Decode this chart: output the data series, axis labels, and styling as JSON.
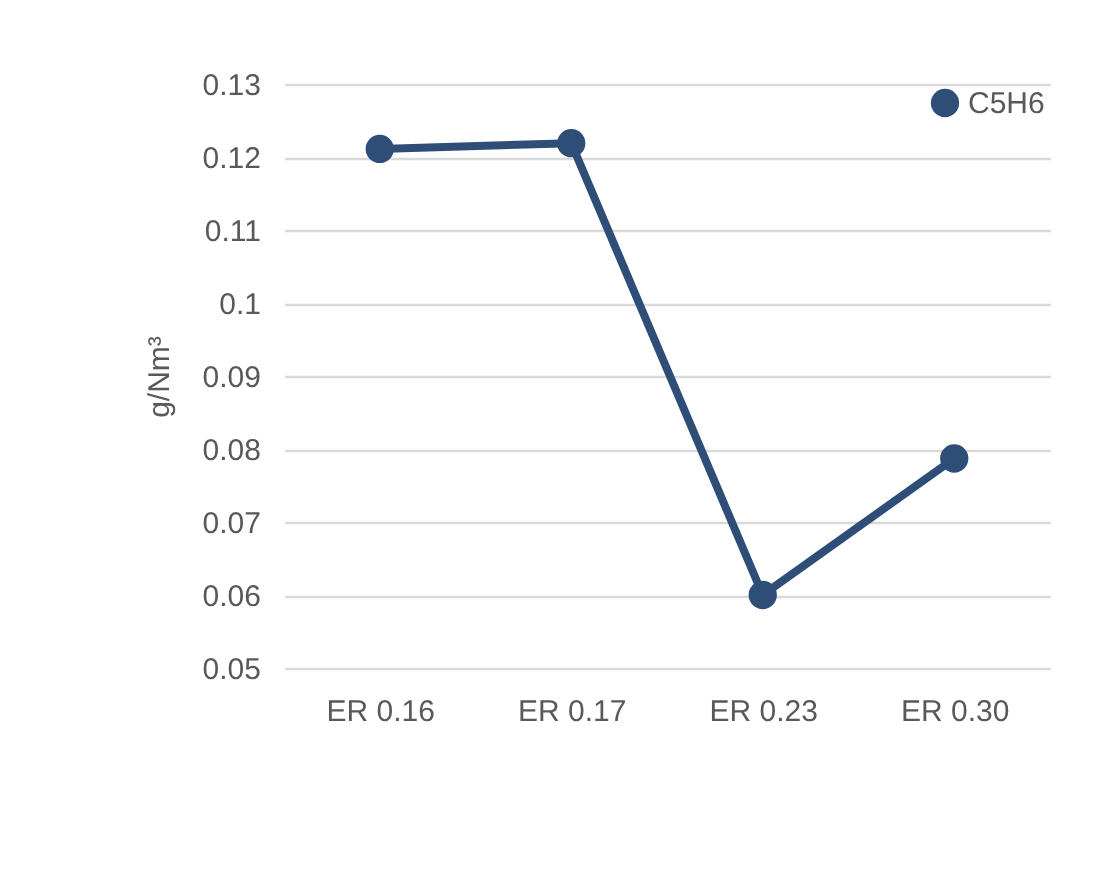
{
  "chart_data": {
    "type": "line",
    "ylabel": "g/Nm³",
    "categories": [
      "ER 0.16",
      "ER 0.17",
      "ER 0.23",
      "ER 0.30"
    ],
    "series": [
      {
        "name": "C5H6",
        "color": "#2e4e78",
        "values": [
          0.1211,
          0.1219,
          0.06,
          0.0787
        ]
      }
    ],
    "ylim": [
      0.05,
      0.13
    ],
    "yticks": [
      0.05,
      0.06,
      0.07,
      0.08,
      0.09,
      0.1,
      0.11,
      0.12,
      0.13
    ],
    "grid": "y",
    "legend": "top right",
    "marker": "circle",
    "line_style": "solid"
  }
}
